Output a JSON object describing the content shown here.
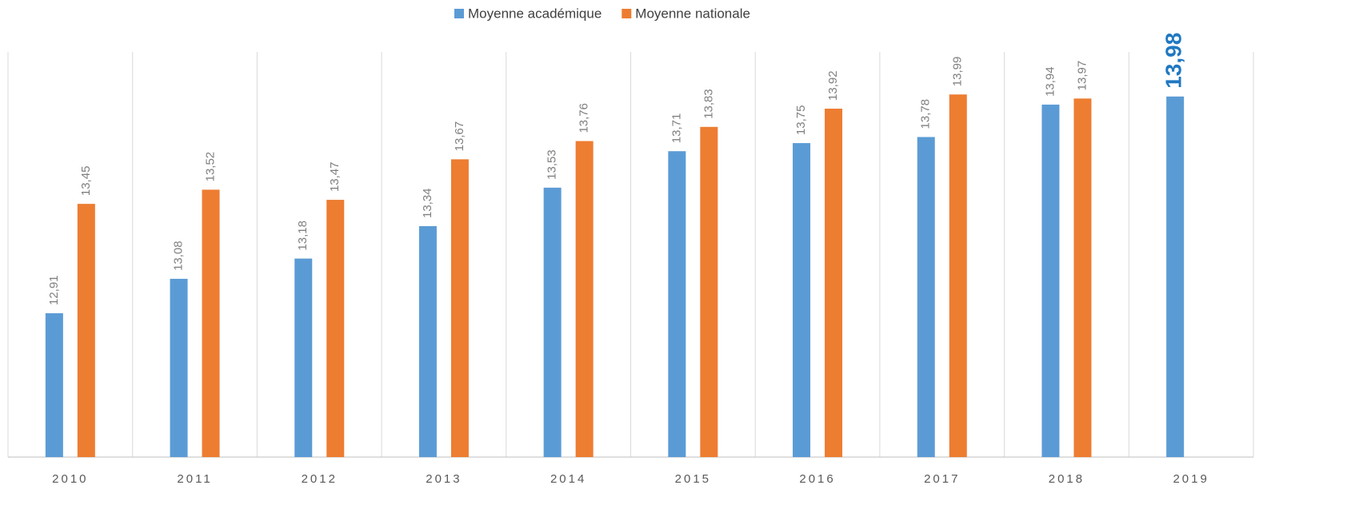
{
  "chart_data": {
    "type": "bar",
    "categories": [
      "2010",
      "2011",
      "2012",
      "2013",
      "2014",
      "2015",
      "2016",
      "2017",
      "2018",
      "2019"
    ],
    "series": [
      {
        "name": "Moyenne académique",
        "color": "#5b9bd5",
        "values": [
          12.91,
          13.08,
          13.18,
          13.34,
          13.53,
          13.71,
          13.75,
          13.78,
          13.94,
          13.98
        ],
        "value_labels": [
          "12,91",
          "13,08",
          "13,18",
          "13,34",
          "13,53",
          "13,71",
          "13,75",
          "13,78",
          "13,94",
          "13,98"
        ]
      },
      {
        "name": "Moyenne nationale",
        "color": "#ed7d31",
        "values": [
          13.45,
          13.52,
          13.47,
          13.67,
          13.76,
          13.83,
          13.92,
          13.99,
          13.97,
          null
        ],
        "value_labels": [
          "13,45",
          "13,52",
          "13,47",
          "13,67",
          "13,76",
          "13,83",
          "13,92",
          "13,99",
          "13,97",
          null
        ]
      }
    ],
    "ylim": [
      12.2,
      14.2
    ],
    "legend": "top"
  }
}
